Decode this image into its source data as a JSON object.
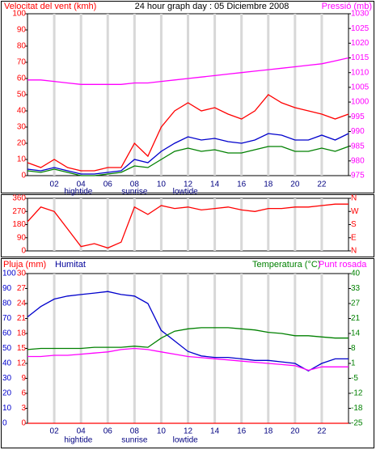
{
  "chart_data": [
    {
      "type": "line",
      "title": "24 hour graph day : 05 Diciembre 2008",
      "ylabel": "Velocitat del vent (kmh)",
      "y2label": "Pressió (mb)",
      "x": [
        0,
        1,
        2,
        3,
        4,
        5,
        6,
        7,
        8,
        9,
        10,
        11,
        12,
        13,
        14,
        15,
        16,
        17,
        18,
        19,
        20,
        21,
        22,
        23,
        24
      ],
      "xlim": [
        0,
        24
      ],
      "xticks": [
        {
          "value": 2,
          "label": "02"
        },
        {
          "value": 4,
          "label": "04"
        },
        {
          "value": 6,
          "label": "06"
        },
        {
          "value": 8,
          "label": "08"
        },
        {
          "value": 10,
          "label": "10"
        },
        {
          "value": 12,
          "label": "12"
        },
        {
          "value": 14,
          "label": "14"
        },
        {
          "value": 16,
          "label": "16"
        },
        {
          "value": 18,
          "label": "18"
        },
        {
          "value": 20,
          "label": "20"
        },
        {
          "value": 22,
          "label": "22"
        }
      ],
      "ylim": [
        0,
        100
      ],
      "yticks": [
        0,
        10,
        20,
        30,
        40,
        50,
        60,
        70,
        80,
        90,
        100
      ],
      "y2lim": [
        975,
        1030
      ],
      "y2ticks": [
        975,
        980,
        985,
        990,
        995,
        1000,
        1005,
        1010,
        1015,
        1020,
        1025,
        1030
      ],
      "grid": true,
      "annotations": [
        {
          "text": "hightide",
          "x": 3.8
        },
        {
          "text": "sunrise",
          "x": 8
        },
        {
          "text": "lowtide",
          "x": 11.8
        }
      ],
      "series": [
        {
          "color": "#ff00ff",
          "axis": "y2",
          "values": [
            1007.5,
            1007.5,
            1007,
            1006.5,
            1006,
            1006,
            1006,
            1006,
            1006.5,
            1006.5,
            1007,
            1007.5,
            1008,
            1008.5,
            1009,
            1009.5,
            1010,
            1010.5,
            1011,
            1011.5,
            1012,
            1012.5,
            1013,
            1014,
            1015
          ]
        },
        {
          "color": "#ff0000",
          "values": [
            8,
            5,
            10,
            5,
            3,
            3,
            5,
            5,
            20,
            12,
            30,
            40,
            45,
            40,
            42,
            38,
            35,
            40,
            50,
            45,
            42,
            40,
            38,
            35,
            38
          ]
        },
        {
          "color": "#0000cc",
          "values": [
            4,
            3,
            5,
            3,
            1,
            1,
            2,
            3,
            10,
            8,
            15,
            20,
            24,
            22,
            23,
            21,
            20,
            22,
            26,
            25,
            22,
            22,
            25,
            22,
            26
          ]
        },
        {
          "color": "#008000",
          "values": [
            3,
            2,
            4,
            2,
            0,
            0,
            1,
            2,
            6,
            5,
            10,
            15,
            17,
            15,
            16,
            14,
            14,
            16,
            18,
            18,
            15,
            15,
            17,
            15,
            18
          ]
        }
      ]
    },
    {
      "type": "line",
      "x": [
        0,
        1,
        2,
        3,
        4,
        5,
        6,
        7,
        8,
        9,
        10,
        11,
        12,
        13,
        14,
        15,
        16,
        17,
        18,
        19,
        20,
        21,
        22,
        23,
        24
      ],
      "xlim": [
        0,
        24
      ],
      "xticks": [
        {
          "value": 2,
          "label": "02"
        },
        {
          "value": 4,
          "label": "04"
        },
        {
          "value": 6,
          "label": "06"
        },
        {
          "value": 8,
          "label": "08"
        },
        {
          "value": 10,
          "label": "10"
        },
        {
          "value": 12,
          "label": "12"
        },
        {
          "value": 14,
          "label": "14"
        },
        {
          "value": 16,
          "label": "16"
        },
        {
          "value": 18,
          "label": "18"
        },
        {
          "value": 20,
          "label": "20"
        },
        {
          "value": 22,
          "label": "22"
        }
      ],
      "ylim": [
        0,
        360
      ],
      "yticks": [
        0,
        90,
        180,
        270,
        360
      ],
      "y2lim": [
        0,
        360
      ],
      "y2ticks": [
        {
          "value": 0,
          "label": "N"
        },
        {
          "value": 90,
          "label": "E"
        },
        {
          "value": 180,
          "label": "S"
        },
        {
          "value": 270,
          "label": "W"
        },
        {
          "value": 360,
          "label": "N"
        }
      ],
      "grid": true,
      "series": [
        {
          "color": "#ff0000",
          "values": [
            200,
            300,
            270,
            150,
            30,
            50,
            20,
            60,
            300,
            250,
            310,
            290,
            300,
            280,
            290,
            300,
            280,
            270,
            290,
            290,
            300,
            300,
            310,
            320,
            320
          ]
        }
      ]
    },
    {
      "type": "line",
      "x": [
        0,
        1,
        2,
        3,
        4,
        5,
        6,
        7,
        8,
        9,
        10,
        11,
        12,
        13,
        14,
        15,
        16,
        17,
        18,
        19,
        20,
        21,
        22,
        23,
        24
      ],
      "xlim": [
        0,
        24
      ],
      "xticks": [
        {
          "value": 2,
          "label": "02"
        },
        {
          "value": 4,
          "label": "04"
        },
        {
          "value": 6,
          "label": "06"
        },
        {
          "value": 8,
          "label": "08"
        },
        {
          "value": 10,
          "label": "10"
        },
        {
          "value": 12,
          "label": "12"
        },
        {
          "value": 14,
          "label": "14"
        },
        {
          "value": 16,
          "label": "16"
        },
        {
          "value": 18,
          "label": "18"
        },
        {
          "value": 20,
          "label": "20"
        },
        {
          "value": 22,
          "label": "22"
        }
      ],
      "ylim": [
        0,
        100
      ],
      "yticks": [
        0,
        10,
        20,
        30,
        40,
        50,
        60,
        70,
        80,
        90,
        100
      ],
      "y3lim": [
        0,
        30
      ],
      "y3ticks": [
        0,
        3,
        6,
        9,
        12,
        15,
        18,
        21,
        24,
        27,
        30
      ],
      "y2lim": [
        -25,
        40
      ],
      "y2ticks": [
        -25,
        {
          "value": -18.5,
          "label": "-18"
        },
        -12,
        {
          "value": -5.5,
          "label": "-5"
        },
        1,
        {
          "value": 7.5,
          "label": "8"
        },
        14,
        {
          "value": 20.5,
          "label": "21"
        },
        27,
        {
          "value": 33.5,
          "label": "33"
        },
        40
      ],
      "grid": true,
      "annotations": [
        {
          "text": "hightide",
          "x": 3.8
        },
        {
          "text": "sunrise",
          "x": 8
        },
        {
          "text": "lowtide",
          "x": 11.8
        }
      ],
      "series": [
        {
          "name": "Pluja (mm)",
          "color": "#ff0000",
          "axis": "y3",
          "values": [
            0,
            0,
            0,
            0,
            0,
            0,
            0,
            0,
            0,
            0,
            0,
            0,
            0,
            0,
            0,
            0,
            0,
            0,
            0,
            0,
            0,
            0,
            0,
            0,
            0
          ]
        },
        {
          "name": "Humitat",
          "color": "#0000cc",
          "values": [
            71,
            78,
            83,
            85,
            86,
            87,
            88,
            86,
            85,
            80,
            62,
            55,
            48,
            45,
            44,
            44,
            43,
            42,
            42,
            41,
            40,
            35,
            40,
            43,
            43
          ]
        },
        {
          "name": "Temperatura (°C)",
          "color": "#008000",
          "axis": "y2",
          "values": [
            7,
            7.5,
            7.5,
            7.5,
            7.5,
            8,
            8,
            8,
            8.5,
            8,
            12,
            15,
            16,
            16.5,
            16.5,
            16.5,
            16,
            15.5,
            14.5,
            14,
            13,
            13,
            12.5,
            12,
            12
          ]
        },
        {
          "name": "Punt rosada",
          "color": "#ff00ff",
          "axis": "y2",
          "values": [
            4,
            4,
            4.5,
            4.5,
            5,
            5.5,
            6,
            7,
            7.5,
            7,
            6,
            5,
            4,
            3.5,
            3,
            2.5,
            2,
            1.5,
            1,
            0.5,
            0,
            -2,
            -0.5,
            -0.5,
            -0.5
          ]
        }
      ]
    }
  ]
}
